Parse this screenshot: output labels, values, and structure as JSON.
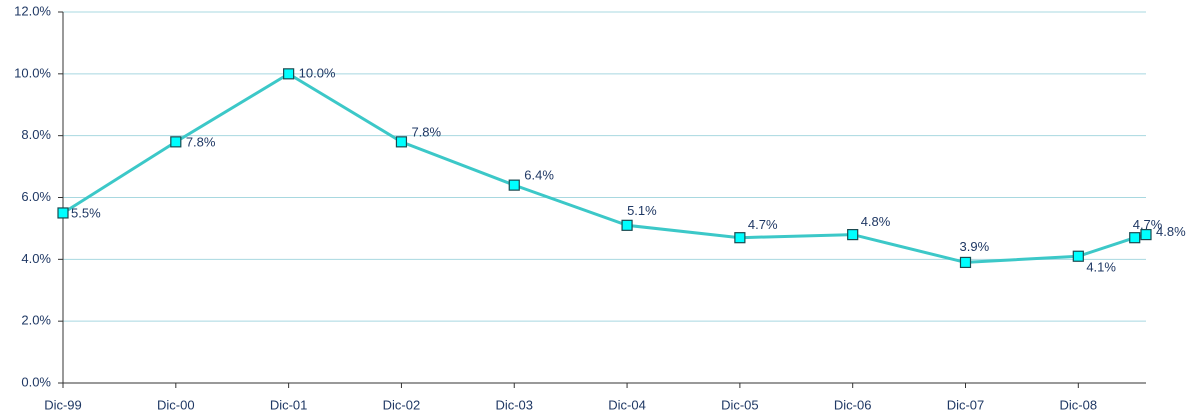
{
  "chart_data": {
    "type": "line",
    "xticks": [
      {
        "value": 0,
        "label": "Dic-99"
      },
      {
        "value": 1,
        "label": "Dic-00"
      },
      {
        "value": 2,
        "label": "Dic-01"
      },
      {
        "value": 3,
        "label": "Dic-02"
      },
      {
        "value": 4,
        "label": "Dic-03"
      },
      {
        "value": 5,
        "label": "Dic-04"
      },
      {
        "value": 6,
        "label": "Dic-05"
      },
      {
        "value": 7,
        "label": "Dic-06"
      },
      {
        "value": 8,
        "label": "Dic-07"
      },
      {
        "value": 9,
        "label": "Dic-08"
      }
    ],
    "xlim": [
      0,
      9.6
    ],
    "x": [
      0,
      1,
      2,
      3,
      4,
      5,
      6,
      7,
      8,
      9,
      9.5,
      9.6
    ],
    "values": [
      5.5,
      7.8,
      10.0,
      7.8,
      6.4,
      5.1,
      4.7,
      4.8,
      3.9,
      4.1,
      4.7,
      4.8
    ],
    "value_labels": [
      "5.5%",
      "7.8%",
      "10.0%",
      "7.8%",
      "6.4%",
      "5.1%",
      "4.7%",
      "4.8%",
      "3.9%",
      "4.1%",
      "4.7%",
      "4.8%"
    ],
    "color": "#3cc8c8",
    "marker_color": "#00ffff",
    "ylim": [
      0,
      12
    ],
    "yticks": [
      {
        "value": 0,
        "label": "0.0%"
      },
      {
        "value": 2,
        "label": "2.0%"
      },
      {
        "value": 4,
        "label": "4.0%"
      },
      {
        "value": 6,
        "label": "6.0%"
      },
      {
        "value": 8,
        "label": "8.0%"
      },
      {
        "value": 10,
        "label": "10.0%"
      },
      {
        "value": 12,
        "label": "12.0%"
      }
    ],
    "grid": true
  }
}
